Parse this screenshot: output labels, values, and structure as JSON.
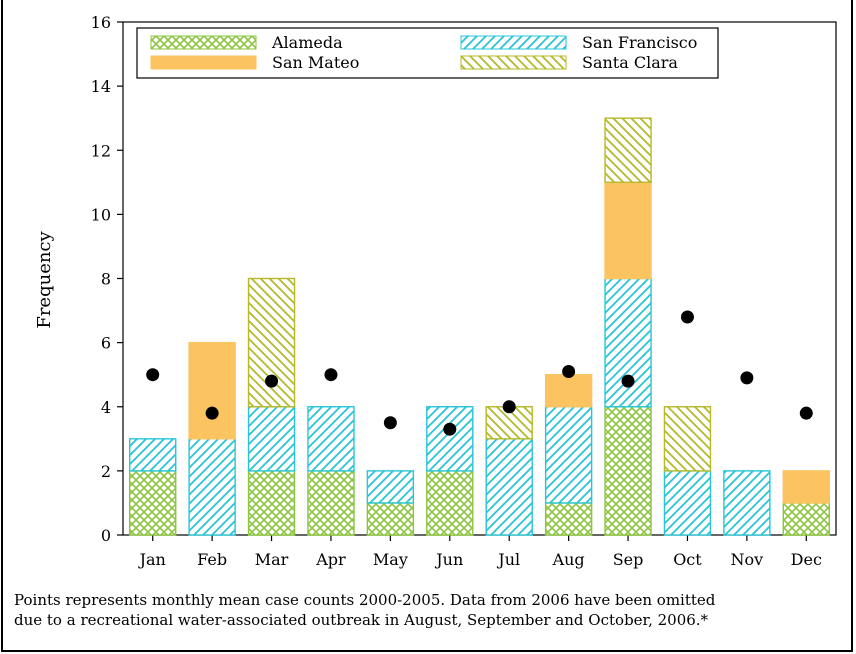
{
  "chart_data": {
    "type": "bar",
    "stacked": true,
    "ylabel": "Frequency",
    "xlabel": "",
    "ylim": [
      0,
      16
    ],
    "yticks": [
      0,
      2,
      4,
      6,
      8,
      10,
      12,
      14,
      16
    ],
    "grid": false,
    "legend_position": "top",
    "categories": [
      "Jan",
      "Feb",
      "Mar",
      "Apr",
      "May",
      "Jun",
      "Jul",
      "Aug",
      "Sep",
      "Oct",
      "Nov",
      "Dec"
    ],
    "series": [
      {
        "name": "Alameda",
        "pattern": "crosshatch",
        "color": "#8cc63f",
        "values": [
          2,
          0,
          2,
          2,
          1,
          2,
          0,
          1,
          4,
          0,
          0,
          1
        ]
      },
      {
        "name": "San Francisco",
        "pattern": "diagonal",
        "color": "#29c5d6",
        "values": [
          1,
          3,
          2,
          2,
          1,
          2,
          3,
          3,
          4,
          2,
          2,
          0
        ]
      },
      {
        "name": "San Mateo",
        "pattern": "solid",
        "color": "#fbc461",
        "values": [
          0,
          3,
          0,
          0,
          0,
          0,
          0,
          1,
          3,
          0,
          0,
          1
        ]
      },
      {
        "name": "Santa Clara",
        "pattern": "diagonal-reverse",
        "color": "#b5b92a",
        "values": [
          0,
          0,
          4,
          0,
          0,
          0,
          1,
          0,
          2,
          2,
          0,
          0
        ]
      }
    ],
    "points": {
      "values": [
        5.0,
        3.8,
        4.8,
        5.0,
        3.5,
        3.3,
        4.0,
        5.1,
        4.8,
        6.8,
        4.9,
        3.8
      ]
    }
  },
  "caption": {
    "line1": "Points represents monthly mean case counts 2000-2005. Data from 2006 have been omitted",
    "line2": "due to a recreational water-associated outbreak in August, September and October, 2006.*"
  }
}
